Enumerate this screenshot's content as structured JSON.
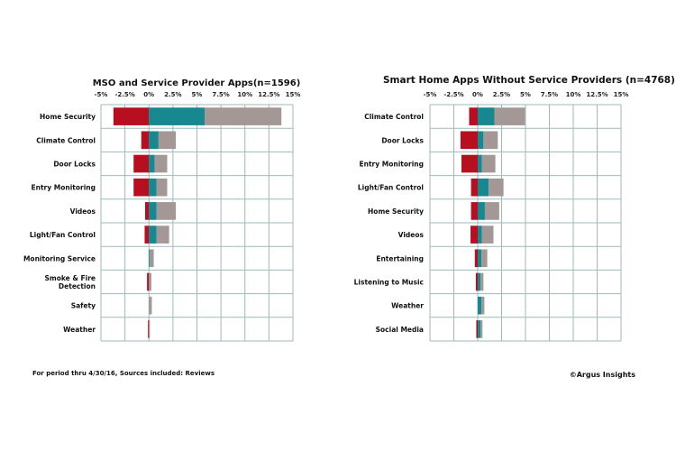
{
  "colors": {
    "negative": "#b80f20",
    "positive_a": "#17888f",
    "positive_b": "#a39896",
    "grid": "#9fb9ba"
  },
  "chart_data": [
    {
      "type": "bar",
      "orientation": "horizontal-stacked-diverging",
      "title": "MSO and Service Provider Apps(n=1596)",
      "xlim": [
        -5,
        15
      ],
      "x_ticks": [
        "-5%",
        "-2.5%",
        "0%",
        "2.5%",
        "5%",
        "7.5%",
        "10%",
        "12.5%",
        "15%"
      ],
      "grid": true,
      "categories": [
        "Home Security",
        "Climate Control",
        "Door Locks",
        "Entry Monitoring",
        "Videos",
        "Light/Fan Control",
        "Monitoring Service",
        "Smoke & Fire Detection",
        "Safety",
        "Weather"
      ],
      "series": [
        {
          "color": "#b80f20",
          "values": [
            -3.7,
            -0.8,
            -1.6,
            -1.6,
            -0.4,
            -0.45,
            0,
            -0.2,
            0,
            -0.1
          ]
        },
        {
          "color": "#17888f",
          "values": [
            5.8,
            1.0,
            0.6,
            0.8,
            0.8,
            0.8,
            0.1,
            0,
            0,
            0
          ]
        },
        {
          "color": "#a39896",
          "values": [
            8.0,
            1.8,
            1.3,
            1.1,
            2.0,
            1.3,
            0.4,
            0.25,
            0.3,
            0.1
          ]
        }
      ]
    },
    {
      "type": "bar",
      "orientation": "horizontal-stacked-diverging",
      "title": "Smart Home Apps Without Service Providers (n=4768)",
      "xlim": [
        -5,
        15
      ],
      "x_ticks": [
        "-5%",
        "-2.5%",
        "0%",
        "2.5%",
        "5%",
        "7.5%",
        "10%",
        "12.5%",
        "15%"
      ],
      "grid": true,
      "categories": [
        "Climate Control",
        "Door Locks",
        "Entry Monitoring",
        "Light/Fan Control",
        "Home Security",
        "Videos",
        "Entertaining",
        "Listening to Music",
        "Weather",
        "Social Media"
      ],
      "series": [
        {
          "color": "#b80f20",
          "values": [
            -0.9,
            -1.8,
            -1.7,
            -0.7,
            -0.7,
            -0.75,
            -0.3,
            -0.2,
            0,
            -0.15
          ]
        },
        {
          "color": "#17888f",
          "values": [
            1.75,
            0.6,
            0.45,
            1.15,
            0.75,
            0.45,
            0.4,
            0.3,
            0.4,
            0.3
          ]
        },
        {
          "color": "#a39896",
          "values": [
            3.2,
            1.5,
            1.4,
            1.55,
            1.5,
            1.2,
            0.6,
            0.3,
            0.3,
            0.2
          ]
        }
      ]
    }
  ],
  "footer": {
    "note": "For period thru 4/30/16, Sources included: Reviews",
    "copyright": "©Argus Insights"
  }
}
